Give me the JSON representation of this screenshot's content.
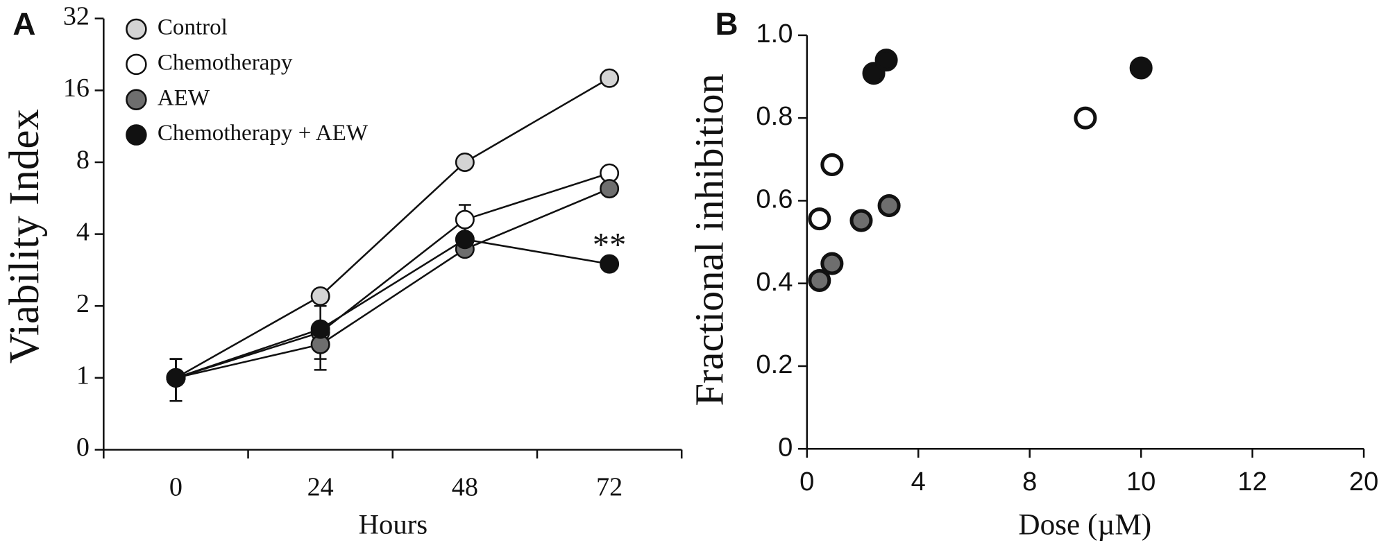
{
  "chart_data": [
    {
      "type": "line",
      "panel_label": "A",
      "ylabel": "Viability Index",
      "xlabel": "Hours",
      "categories": [
        "0",
        "24",
        "48",
        "72"
      ],
      "log_scale": true,
      "ylim": [
        0.5,
        32
      ],
      "yticks": [
        {
          "value": 0.5,
          "label": "0"
        },
        1,
        2,
        4,
        8,
        16,
        32
      ],
      "legend": "top-left",
      "series": [
        {
          "name": "Control",
          "color": "#d4d4d4",
          "values": [
            1,
            2.2,
            8,
            18
          ],
          "errors": [
            0.2,
            null,
            null,
            1.0
          ]
        },
        {
          "name": "Chemotherapy",
          "color": "#ffffff",
          "values": [
            1,
            1.55,
            4.6,
            7.2
          ],
          "errors": [
            0.2,
            null,
            0.7,
            null
          ]
        },
        {
          "name": "AEW",
          "color": "#6e6e6e",
          "values": [
            1,
            1.38,
            3.46,
            6.2
          ],
          "errors": [
            0.2,
            0.3,
            null,
            null
          ]
        },
        {
          "name": "Chemotherapy + AEW",
          "color": "#111111",
          "values": [
            1,
            1.6,
            3.8,
            3.0
          ],
          "errors": [
            0.2,
            0.4,
            null,
            null
          ]
        }
      ],
      "annotation": "**"
    },
    {
      "type": "scatter",
      "panel_label": "B",
      "ylabel": "Fractional inhibition",
      "xlabel": "Dose (µM)",
      "xlim": [
        0,
        20
      ],
      "xticks": [
        0,
        4,
        8,
        10,
        12,
        20
      ],
      "ylim": [
        0,
        1.0
      ],
      "yticks": [
        0,
        {
          "value": 0.2,
          "label": "0.2"
        },
        {
          "value": 0.4,
          "label": "0.4"
        },
        {
          "value": 0.6,
          "label": "0.6"
        },
        {
          "value": 0.8,
          "label": "0.8"
        },
        {
          "value": 1.0,
          "label": "1.0"
        }
      ],
      "series": [
        {
          "color": "#ffffff",
          "x": [
            0.45,
            0.9,
            9
          ],
          "values": [
            0.556,
            0.687,
            0.8
          ]
        },
        {
          "color": "#111111",
          "x": [
            2.4,
            2.85,
            10
          ],
          "values": [
            0.908,
            0.94,
            0.921
          ]
        },
        {
          "color": "#6e6e6e",
          "x": [
            0.45,
            0.9,
            1.95,
            2.95
          ],
          "values": [
            0.407,
            0.448,
            0.552,
            0.588
          ]
        }
      ]
    }
  ]
}
